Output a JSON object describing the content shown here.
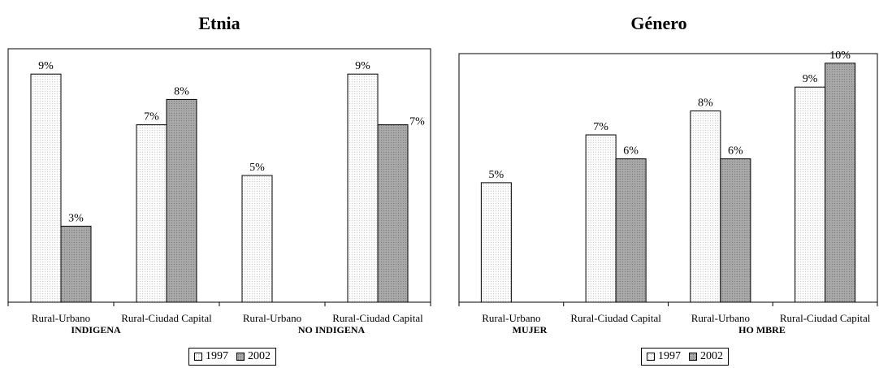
{
  "chart_data": [
    {
      "type": "bar",
      "title": "Etnia",
      "categories": [
        "Rural-Urbano",
        "Rural-Ciudad Capital",
        "Rural-Urbano",
        "Rural-Ciudad Capital"
      ],
      "groups": [
        {
          "label": "INDIGENA",
          "span": [
            0,
            1
          ]
        },
        {
          "label": "NO INDIGENA",
          "span": [
            2,
            3
          ]
        }
      ],
      "series": [
        {
          "name": "1997",
          "values": [
            9,
            7,
            5,
            9
          ],
          "labels": [
            "9%",
            "7%",
            "5%",
            "9%"
          ]
        },
        {
          "name": "2002",
          "values": [
            3,
            8,
            null,
            7
          ],
          "labels": [
            "3%",
            "8%",
            "",
            "7%"
          ]
        }
      ],
      "ylim": [
        0,
        10
      ],
      "grid": false,
      "legend": "bottom-center"
    },
    {
      "type": "bar",
      "title": "Género",
      "categories": [
        "Rural-Urbano",
        "Rural-Ciudad Capital",
        "Rural-Urbano",
        "Rural-Ciudad Capital"
      ],
      "groups": [
        {
          "label": "MUJER",
          "span": [
            0,
            1
          ]
        },
        {
          "label": "HO MBRE",
          "span": [
            2,
            3
          ]
        }
      ],
      "series": [
        {
          "name": "1997",
          "values": [
            5,
            7,
            8,
            9
          ],
          "labels": [
            "5%",
            "7%",
            "8%",
            "9%"
          ]
        },
        {
          "name": "2002",
          "values": [
            null,
            6,
            6,
            10
          ],
          "labels": [
            "",
            "6%",
            "6%",
            "10%"
          ]
        }
      ],
      "ylim": [
        0,
        10.4
      ],
      "grid": false,
      "legend": "bottom-center"
    }
  ],
  "colors": {
    "series_1997": "#fbfbfb",
    "series_2002": "#a8a8a8",
    "border": "#000000"
  }
}
